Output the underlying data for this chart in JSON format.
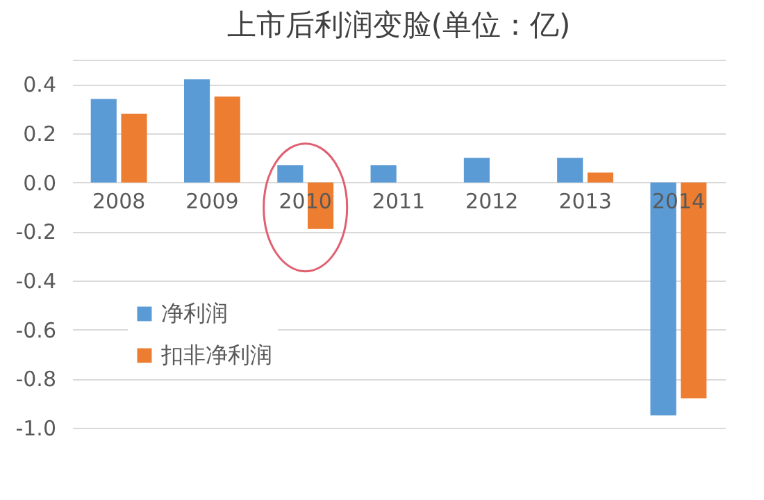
{
  "chart_data": {
    "type": "bar",
    "title": "上市后利润变脸(单位：亿)",
    "categories": [
      "2008",
      "2009",
      "2010",
      "2011",
      "2012",
      "2013",
      "2014"
    ],
    "series": [
      {
        "name": "净利润",
        "color": "#5b9bd5",
        "values": [
          0.34,
          0.42,
          0.07,
          0.07,
          0.1,
          0.1,
          -0.95
        ]
      },
      {
        "name": "扣非净利润",
        "color": "#ed7d31",
        "values": [
          0.28,
          0.35,
          -0.19,
          null,
          null,
          0.04,
          -0.88
        ]
      }
    ],
    "ylim": [
      -1.0,
      0.5
    ],
    "yticks": [
      {
        "value": -1.0,
        "label": "-1.0"
      },
      {
        "value": -0.8,
        "label": "-0.8"
      },
      {
        "value": -0.6,
        "label": "-0.6"
      },
      {
        "value": -0.4,
        "label": "-0.4"
      },
      {
        "value": -0.2,
        "label": "-0.2"
      },
      {
        "value": 0,
        "label": "0.0"
      },
      {
        "value": 0.2,
        "label": "0.2"
      },
      {
        "value": 0.4,
        "label": "0.4"
      },
      {
        "value": 0.5,
        "label": null
      }
    ],
    "grid": "y",
    "legend": "bottom left"
  }
}
